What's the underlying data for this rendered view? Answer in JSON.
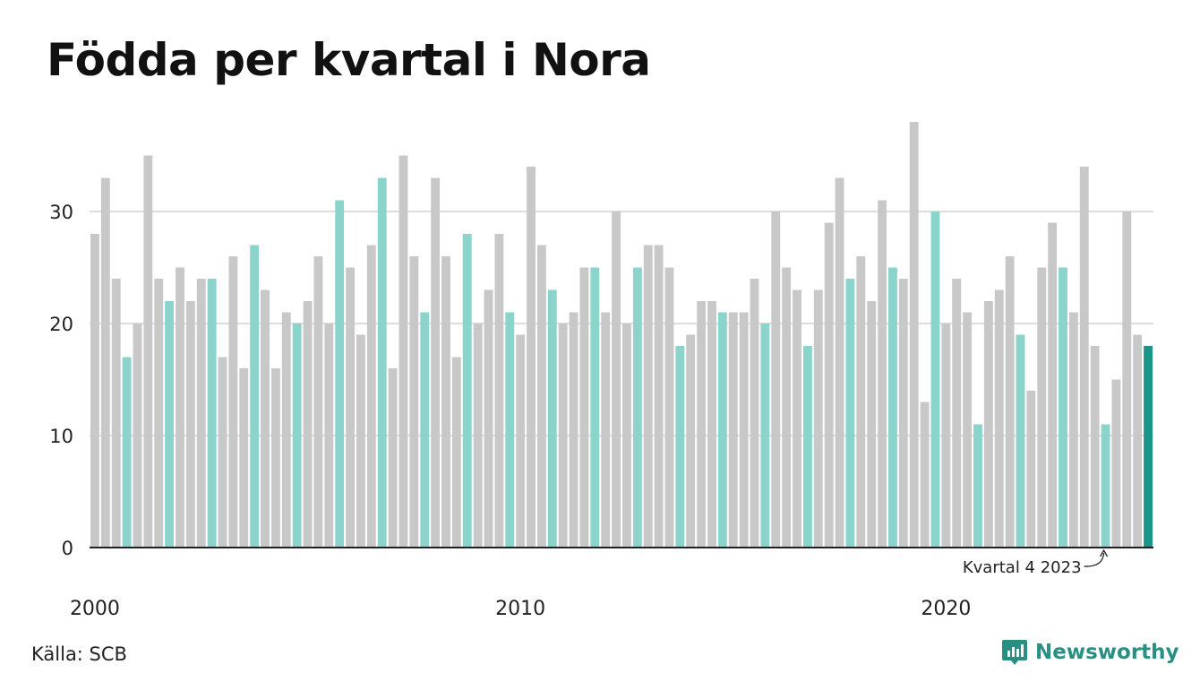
{
  "title": "Födda per kvartal i Nora",
  "source": "Källa: SCB",
  "brand": {
    "name": "Newsworthy",
    "icon": "newsworthy-logo-icon"
  },
  "colors": {
    "bar_default": "#c8c8c8",
    "bar_q4": "#8ad4cc",
    "bar_latest": "#1a9587",
    "grid": "#dddddd",
    "axis": "#222222",
    "brand": "#2a8f83"
  },
  "chart_data": {
    "type": "bar",
    "title": "Födda per kvartal i Nora",
    "xlabel": "",
    "ylabel": "",
    "ylim": [
      0,
      38
    ],
    "yticks": [
      0,
      10,
      20,
      30
    ],
    "grid": true,
    "x_start": "2000 Q1",
    "x_tick_labels": [
      "2000",
      "2010",
      "2020"
    ],
    "annotation": {
      "text": "Kvartal 4 2023",
      "target_year": 2023,
      "target_quarter": 4
    },
    "series": [
      {
        "values": [
          28,
          33,
          24,
          17,
          20,
          35,
          24,
          22,
          25,
          22,
          24,
          24,
          17,
          26,
          16,
          27,
          23,
          16,
          21,
          20,
          22,
          26,
          20,
          31,
          25,
          19,
          27,
          33,
          16,
          35,
          26,
          21,
          33,
          26,
          17,
          28,
          20,
          23,
          28,
          21,
          19,
          34,
          27,
          23,
          20,
          21,
          25,
          25,
          21,
          30,
          20,
          25,
          27,
          27,
          25,
          18,
          19,
          22,
          22,
          21,
          21,
          21,
          24,
          20,
          30,
          25,
          23,
          18,
          23,
          29,
          33,
          24,
          26,
          22,
          31,
          25,
          24,
          38,
          13,
          30,
          20,
          24,
          21,
          11,
          22,
          23,
          26,
          19,
          14,
          25,
          29,
          25,
          21,
          34,
          18,
          11,
          15,
          30,
          19,
          18
        ]
      }
    ]
  }
}
